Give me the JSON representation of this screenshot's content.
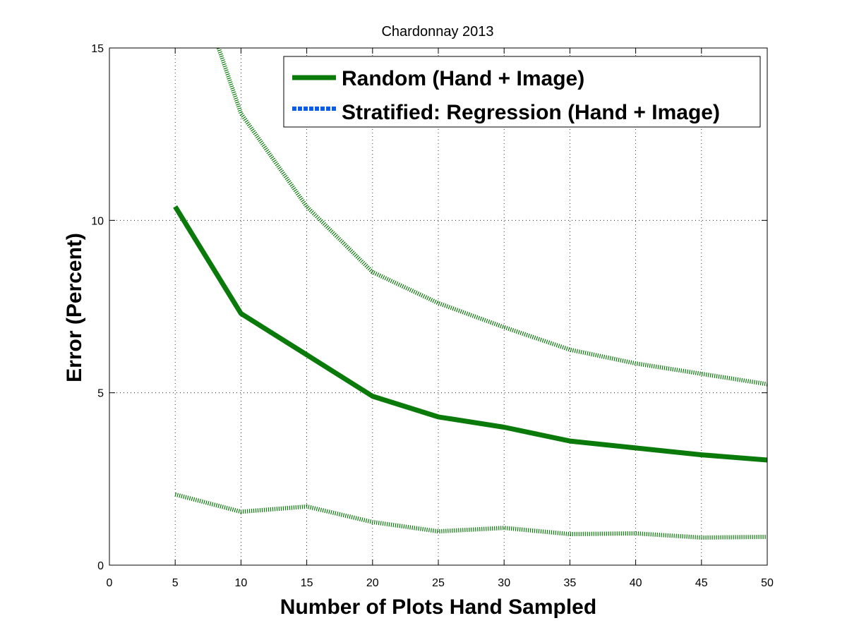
{
  "chart_data": {
    "type": "line",
    "title": "Chardonnay 2013",
    "xlabel": "Number of Plots Hand Sampled",
    "ylabel": "Error (Percent)",
    "xlim": [
      0,
      50
    ],
    "ylim": [
      0,
      15
    ],
    "xticks": [
      "0",
      "5",
      "10",
      "15",
      "20",
      "25",
      "30",
      "35",
      "40",
      "45",
      "50"
    ],
    "yticks": [
      "0",
      "5",
      "10",
      "15"
    ],
    "grid": true,
    "legend_position": "top-right",
    "series": [
      {
        "name": "Random (Hand + Image)",
        "style": "solid",
        "color": "#0a7a0a",
        "x": [
          5,
          10,
          15,
          20,
          25,
          30,
          35,
          40,
          45,
          50
        ],
        "y": [
          10.4,
          7.3,
          6.1,
          4.9,
          4.3,
          4.0,
          3.6,
          3.4,
          3.2,
          3.05
        ]
      },
      {
        "name": "Stratified: Regression (Hand + Image)",
        "style": "dotted",
        "color": "#0a5ce6",
        "legend_only": true,
        "x": [],
        "y": []
      },
      {
        "name": "",
        "style": "dotted",
        "color": "#0a7a0a",
        "x": [
          8.3,
          10,
          15,
          20,
          25,
          30,
          35,
          40,
          45,
          50
        ],
        "y": [
          15.0,
          13.1,
          10.4,
          8.5,
          7.6,
          6.9,
          6.25,
          5.85,
          5.55,
          5.25
        ]
      },
      {
        "name": "",
        "style": "dotted",
        "color": "#0a7a0a",
        "x": [
          5,
          10,
          15,
          20,
          25,
          30,
          35,
          40,
          45,
          50
        ],
        "y": [
          2.05,
          1.55,
          1.7,
          1.25,
          0.98,
          1.08,
          0.9,
          0.92,
          0.8,
          0.82
        ]
      }
    ]
  }
}
